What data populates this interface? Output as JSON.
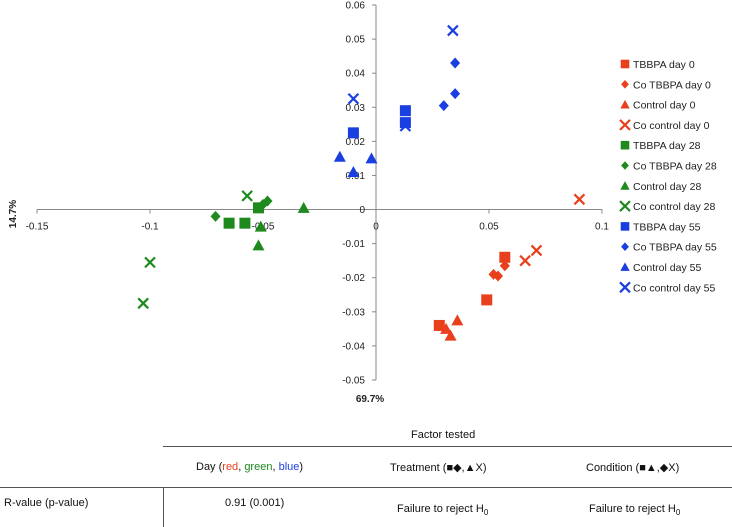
{
  "chart_data": {
    "type": "scatter",
    "xlim": [
      -0.15,
      0.1
    ],
    "ylim": [
      -0.05,
      0.06
    ],
    "x_ticks": [
      "-0.15",
      "-0.1",
      "-0.05",
      "0",
      "0.05",
      "0.1"
    ],
    "y_ticks": [
      "0.06",
      "0.05",
      "0.04",
      "0.03",
      "0.02",
      "0.01",
      "0",
      "-0.01",
      "-0.02",
      "-0.03",
      "-0.04",
      "-0.05"
    ],
    "xlabel": "69.7%",
    "ylabel": "14.7%",
    "legend_position": "right",
    "series": [
      {
        "name": "TBBPA day 0",
        "color": "#e8401c",
        "marker": "square",
        "points": [
          [
            0.057,
            -0.014
          ],
          [
            0.049,
            -0.0265
          ],
          [
            0.028,
            -0.034
          ]
        ]
      },
      {
        "name": "Co TBBPA day 0",
        "color": "#e8401c",
        "marker": "diamond",
        "points": [
          [
            0.057,
            -0.0165
          ],
          [
            0.054,
            -0.0195
          ],
          [
            0.052,
            -0.019
          ]
        ]
      },
      {
        "name": "Control day 0",
        "color": "#e8401c",
        "marker": "triangle",
        "points": [
          [
            0.031,
            -0.035
          ],
          [
            0.036,
            -0.0325
          ],
          [
            0.033,
            -0.037
          ]
        ]
      },
      {
        "name": "Co control day 0",
        "color": "#e8401c",
        "marker": "x",
        "points": [
          [
            0.09,
            0.003
          ],
          [
            0.071,
            -0.012
          ],
          [
            0.066,
            -0.015
          ]
        ]
      },
      {
        "name": "TBBPA day 28",
        "color": "#1e8a1e",
        "marker": "square",
        "points": [
          [
            -0.052,
            0.0005
          ],
          [
            -0.065,
            -0.004
          ],
          [
            -0.058,
            -0.004
          ]
        ]
      },
      {
        "name": "Co TBBPA day 28",
        "color": "#1e8a1e",
        "marker": "diamond",
        "points": [
          [
            -0.071,
            -0.002
          ],
          [
            -0.05,
            0.0015
          ],
          [
            -0.048,
            0.0025
          ]
        ]
      },
      {
        "name": "Control day 28",
        "color": "#1e8a1e",
        "marker": "triangle",
        "points": [
          [
            -0.032,
            0.0005
          ],
          [
            -0.052,
            -0.0105
          ],
          [
            -0.051,
            -0.005
          ]
        ]
      },
      {
        "name": "Co control day 28",
        "color": "#1e8a1e",
        "marker": "x",
        "points": [
          [
            -0.1,
            -0.0155
          ],
          [
            -0.103,
            -0.0275
          ],
          [
            -0.057,
            0.004
          ]
        ]
      },
      {
        "name": "TBBPA day 55",
        "color": "#1a3fe0",
        "marker": "square",
        "points": [
          [
            -0.01,
            0.0225
          ],
          [
            0.013,
            0.029
          ],
          [
            0.013,
            0.0255
          ]
        ]
      },
      {
        "name": "Co TBBPA day 55",
        "color": "#1a3fe0",
        "marker": "diamond",
        "points": [
          [
            0.035,
            0.043
          ],
          [
            0.035,
            0.034
          ],
          [
            0.03,
            0.0305
          ]
        ]
      },
      {
        "name": "Control day 55",
        "color": "#1a3fe0",
        "marker": "triangle",
        "points": [
          [
            -0.016,
            0.0155
          ],
          [
            -0.002,
            0.015
          ],
          [
            -0.01,
            0.011
          ]
        ]
      },
      {
        "name": "Co control day 55",
        "color": "#1a3fe0",
        "marker": "x",
        "points": [
          [
            0.034,
            0.0525
          ],
          [
            -0.01,
            0.0325
          ],
          [
            0.013,
            0.0245
          ]
        ]
      }
    ]
  },
  "table": {
    "factor_header": "Factor tested",
    "col_day_prefix": "Day (",
    "col_day_red": "red",
    "col_day_sep1": ", ",
    "col_day_green": "green",
    "col_day_sep2": ", ",
    "col_day_blue": "blue",
    "col_day_suffix": ")",
    "col_treatment": "Treatment (■◆,▲X)",
    "col_condition": "Condition (■▲,◆X)",
    "row_label": "R-value (p-value)",
    "day_value": "0.91 (0.001)",
    "treatment_value": "Failure to reject H",
    "condition_value": "Failure to reject H",
    "subscript": "0"
  }
}
